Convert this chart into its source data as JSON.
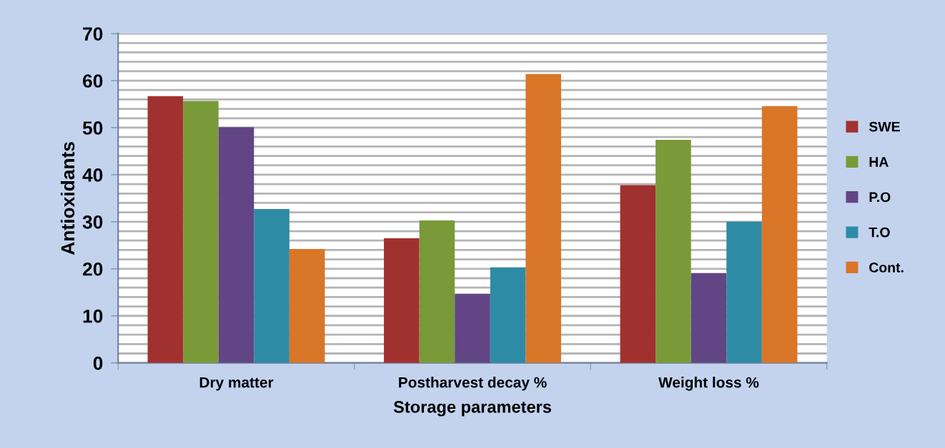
{
  "chart_data": {
    "type": "bar",
    "xlabel": "Storage parameters",
    "ylabel": "Antioxidants",
    "categories": [
      "Dry matter",
      "Postharvest decay %",
      "Weight loss %"
    ],
    "series": [
      {
        "name": "SWE",
        "color": "#a1312f",
        "values": [
          56.7,
          26.5,
          37.8
        ]
      },
      {
        "name": "HA",
        "color": "#7a9a39",
        "values": [
          55.7,
          30.3,
          47.4
        ]
      },
      {
        "name": "P.O",
        "color": "#624584",
        "values": [
          50.1,
          14.7,
          19.1
        ]
      },
      {
        "name": "T.O",
        "color": "#2e8ba5",
        "values": [
          32.7,
          20.3,
          30.0
        ]
      },
      {
        "name": "Cont.",
        "color": "#d97628",
        "values": [
          24.2,
          61.4,
          54.6
        ]
      }
    ],
    "ylim": [
      0,
      70
    ],
    "yticks": [
      0,
      {
        "value": 2,
        "label": null
      },
      {
        "value": 4,
        "label": null
      },
      {
        "value": 6,
        "label": null
      },
      {
        "value": 8,
        "label": null
      },
      10,
      {
        "value": 12,
        "label": null
      },
      {
        "value": 14,
        "label": null
      },
      {
        "value": 16,
        "label": null
      },
      {
        "value": 18,
        "label": null
      },
      20,
      {
        "value": 22,
        "label": null
      },
      {
        "value": 24,
        "label": null
      },
      {
        "value": 26,
        "label": null
      },
      {
        "value": 28,
        "label": null
      },
      30,
      {
        "value": 32,
        "label": null
      },
      {
        "value": 34,
        "label": null
      },
      {
        "value": 36,
        "label": null
      },
      {
        "value": 38,
        "label": null
      },
      40,
      {
        "value": 42,
        "label": null
      },
      {
        "value": 44,
        "label": null
      },
      {
        "value": 46,
        "label": null
      },
      {
        "value": 48,
        "label": null
      },
      50,
      {
        "value": 52,
        "label": null
      },
      {
        "value": 54,
        "label": null
      },
      {
        "value": 56,
        "label": null
      },
      {
        "value": 58,
        "label": null
      },
      60,
      {
        "value": 62,
        "label": null
      },
      {
        "value": 64,
        "label": null
      },
      {
        "value": 66,
        "label": null
      },
      {
        "value": 68,
        "label": null
      },
      70
    ],
    "grid": "y",
    "legend": "right"
  }
}
